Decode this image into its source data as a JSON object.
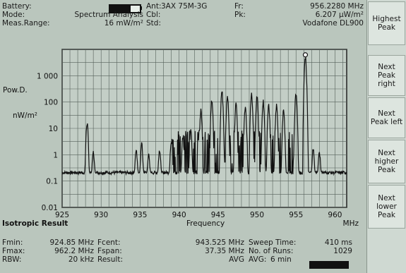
{
  "header": {
    "battery_label": "Battery:",
    "mode_label": "Mode:",
    "mode_value": "Spectrum Analysis",
    "range_label": "Meas.Range:",
    "range_value": "16 mW/m²",
    "ant_label": "Ant:",
    "ant_value": "3AX 75M-3G",
    "cbl_label": "Cbl:",
    "std_label": "Std:",
    "fr_label": "Fr:",
    "fr_value": "956.2280 MHz",
    "pk_label": "Pk:",
    "pk_value": "6.207 µW/m²",
    "operator_value": "Vodafone DL900",
    "battery_level": 0.7
  },
  "softkeys": [
    "Highest Peak",
    "Next Peak right",
    "Next Peak left",
    "Next higher Peak",
    "Next lower Peak"
  ],
  "chart_labels": {
    "y_unit_line1": "Pow.D.",
    "y_unit_line2": "nW/m²",
    "y_ticks": [
      "1 000",
      "100",
      "10",
      "1",
      "0.1",
      "0.01"
    ],
    "x_ticks": [
      "925",
      "930",
      "935",
      "940",
      "945",
      "950",
      "955",
      "960"
    ],
    "x_label": "Frequency",
    "x_unit": "MHz",
    "result_label": "Isotropic Result"
  },
  "chart_data": {
    "type": "line",
    "x_range": [
      925,
      961.5
    ],
    "y_range": [
      0.01,
      10000
    ],
    "y_scale": "log",
    "marker_x": 956.2,
    "peaks": [
      [
        928.2,
        20
      ],
      [
        929.0,
        1.5
      ],
      [
        934.5,
        2
      ],
      [
        935.2,
        3
      ],
      [
        936.1,
        1.2
      ],
      [
        937.5,
        2
      ],
      [
        939.0,
        4
      ],
      [
        940.5,
        6
      ],
      [
        941.5,
        10
      ],
      [
        942.8,
        60
      ],
      [
        944.2,
        150
      ],
      [
        945.5,
        300
      ],
      [
        946.2,
        200
      ],
      [
        947.3,
        100
      ],
      [
        948.5,
        80
      ],
      [
        949.3,
        250
      ],
      [
        950.0,
        200
      ],
      [
        950.8,
        130
      ],
      [
        951.5,
        90
      ],
      [
        952.5,
        100
      ],
      [
        953.4,
        60
      ],
      [
        955.0,
        300
      ],
      [
        956.2,
        6200
      ],
      [
        957.2,
        2
      ],
      [
        958.0,
        1.5
      ]
    ]
  },
  "footer": {
    "fmin_label": "Fmin:",
    "fmin_value": "924.85 MHz",
    "fmax_label": "Fmax:",
    "fmax_value": "962.2 MHz",
    "rbw_label": "RBW:",
    "rbw_value": "20 kHz",
    "fcent_label": "Fcent:",
    "fcent_value": "943.525 MHz",
    "fspan_label": "Fspan:",
    "fspan_value": "37.35 MHz",
    "result_label": "Result:",
    "result_value": "AVG",
    "sweep_label": "Sweep Time:",
    "sweep_value": "410 ms",
    "runs_label": "No. of Runs:",
    "runs_value": "1029",
    "avg_label": "AVG:",
    "avg_value": "6 min"
  }
}
